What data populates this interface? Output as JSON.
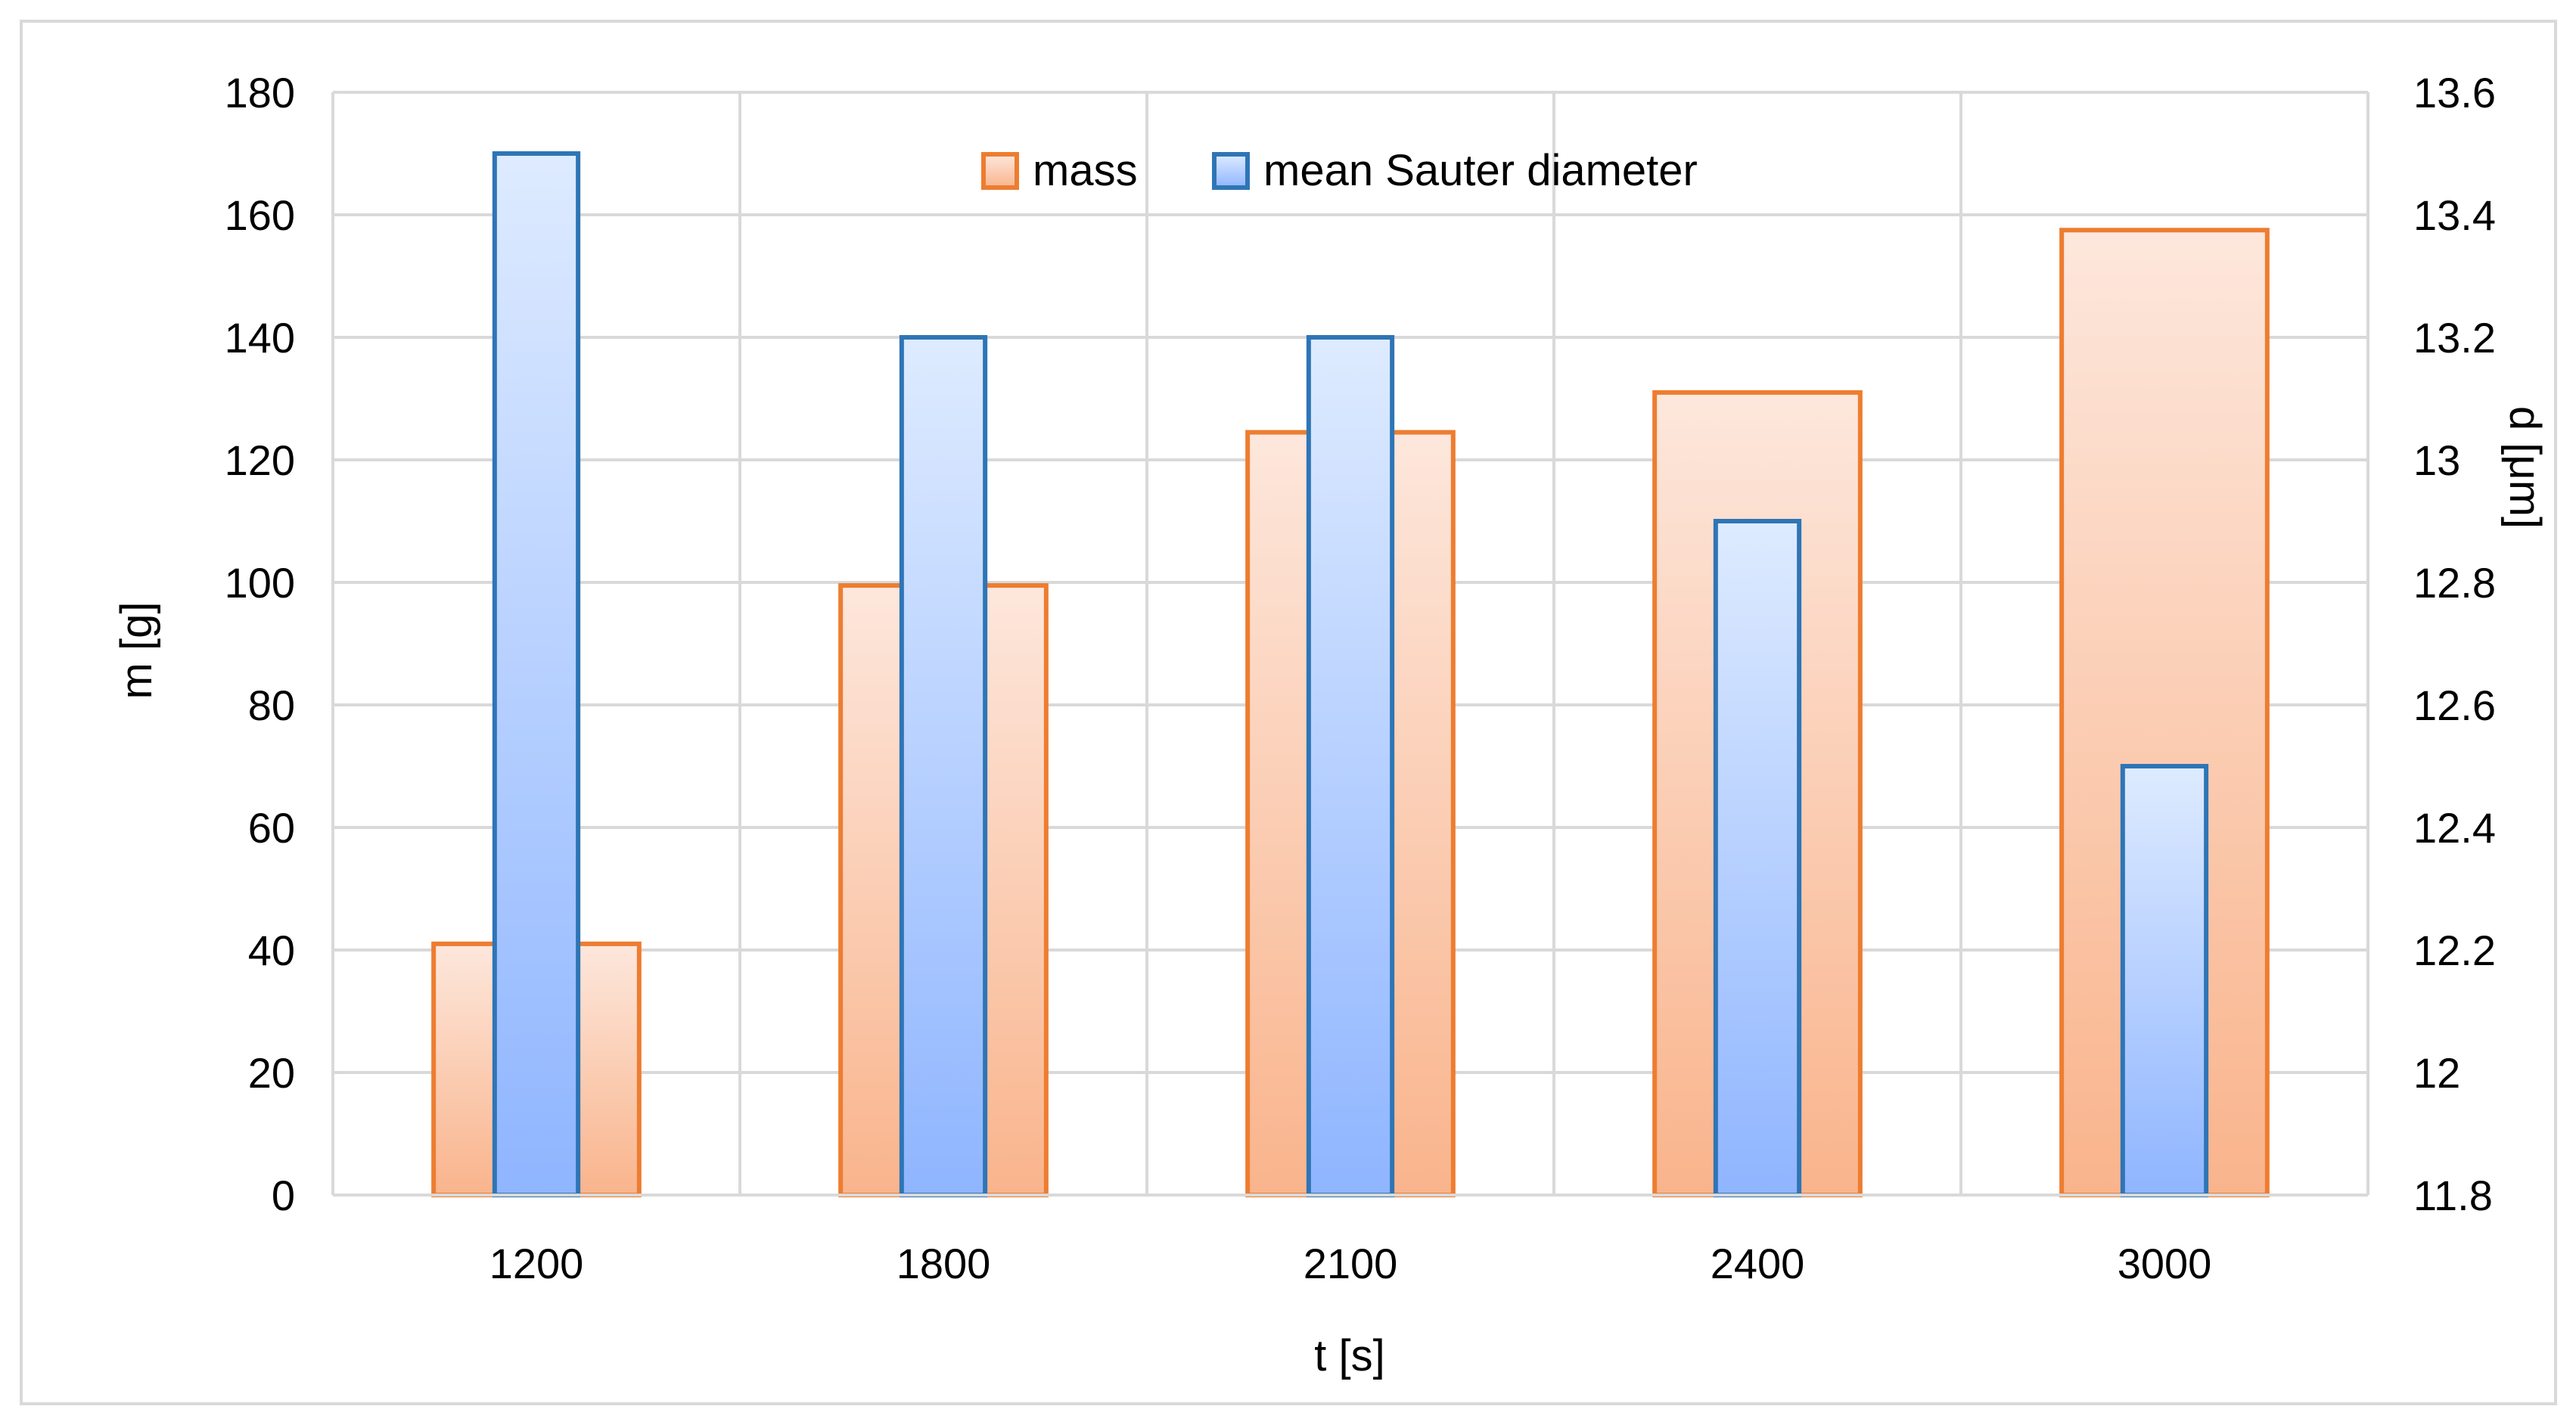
{
  "chart_data": {
    "type": "bar",
    "title": "",
    "xlabel": "t [s]",
    "ylabel": "m [g]",
    "y2label": "d [μm]",
    "categories": [
      "1200",
      "1800",
      "2100",
      "2400",
      "3000"
    ],
    "ylim": [
      0,
      180
    ],
    "y2lim": [
      11.8,
      13.6
    ],
    "yticks": [
      "0",
      "20",
      "40",
      "60",
      "80",
      "100",
      "120",
      "140",
      "160",
      "180"
    ],
    "y2ticks": [
      "11.8",
      "12",
      "12.2",
      "12.4",
      "12.6",
      "12.8",
      "13",
      "13.2",
      "13.4",
      "13.6"
    ],
    "grid": true,
    "legend_position": "top-center",
    "series": [
      {
        "name": "mass",
        "axis": "left",
        "values": [
          41,
          99.5,
          124.5,
          131,
          157.5
        ],
        "color": "#ED7D31",
        "fill_top": "#FDE7DC",
        "fill_bottom": "#F9B48C"
      },
      {
        "name": "mean Sauter diameter",
        "axis": "right",
        "values": [
          13.5,
          13.2,
          13.2,
          12.9,
          12.5
        ],
        "color": "#2E75B6",
        "fill_top": "#DEEBFF",
        "fill_bottom": "#8FB5FF"
      }
    ]
  }
}
